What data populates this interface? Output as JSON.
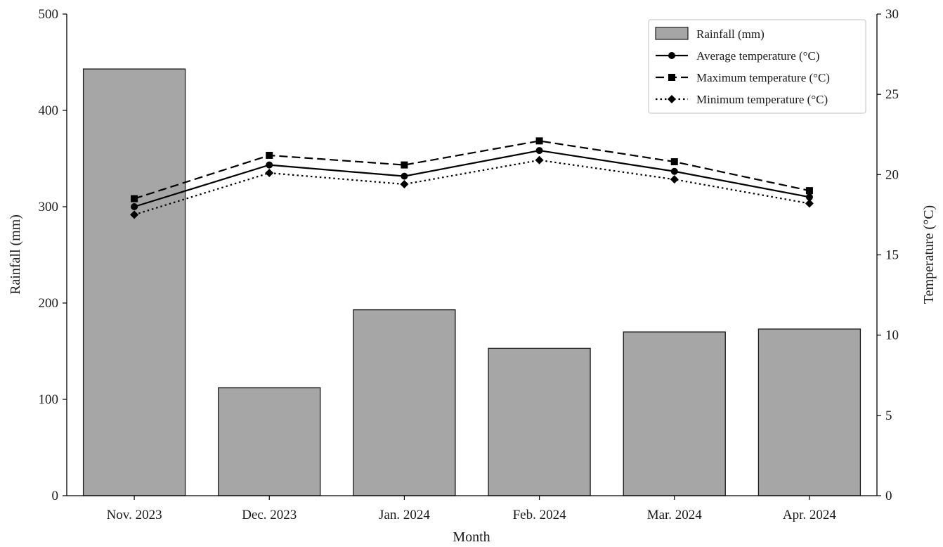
{
  "chart_data": {
    "type": "bar",
    "categories": [
      "Nov. 2023",
      "Dec. 2023",
      "Jan. 2024",
      "Feb. 2024",
      "Mar. 2024",
      "Apr. 2024"
    ],
    "xlabel": "Month",
    "ylabel_left": "Rainfall (mm)",
    "ylabel_right": "Temperature (°C)",
    "ylim_left": [
      0,
      500
    ],
    "ylim_right": [
      0,
      30
    ],
    "yticks_left": [
      0,
      100,
      200,
      300,
      400,
      500
    ],
    "yticks_right": [
      0,
      5,
      10,
      15,
      20,
      25,
      30
    ],
    "grid": false,
    "legend_position": "top-right",
    "series": [
      {
        "name": "Rainfall (mm)",
        "type": "bar",
        "axis": "left",
        "color": "#a6a6a6",
        "values": [
          443,
          112,
          193,
          153,
          170,
          173
        ]
      },
      {
        "name": "Average temperature (°C)",
        "type": "line",
        "axis": "right",
        "line_style": "solid",
        "marker": "circle",
        "color": "#000000",
        "values": [
          18.0,
          20.6,
          19.9,
          21.5,
          20.2,
          18.6
        ]
      },
      {
        "name": "Maximum temperature (°C)",
        "type": "line",
        "axis": "right",
        "line_style": "dashed",
        "marker": "square",
        "color": "#000000",
        "values": [
          18.5,
          21.2,
          20.6,
          22.1,
          20.8,
          19.0
        ]
      },
      {
        "name": "Minimum temperature (°C)",
        "type": "line",
        "axis": "right",
        "line_style": "dotted",
        "marker": "diamond",
        "color": "#000000",
        "values": [
          17.5,
          20.1,
          19.4,
          20.9,
          19.7,
          18.2
        ]
      }
    ]
  }
}
